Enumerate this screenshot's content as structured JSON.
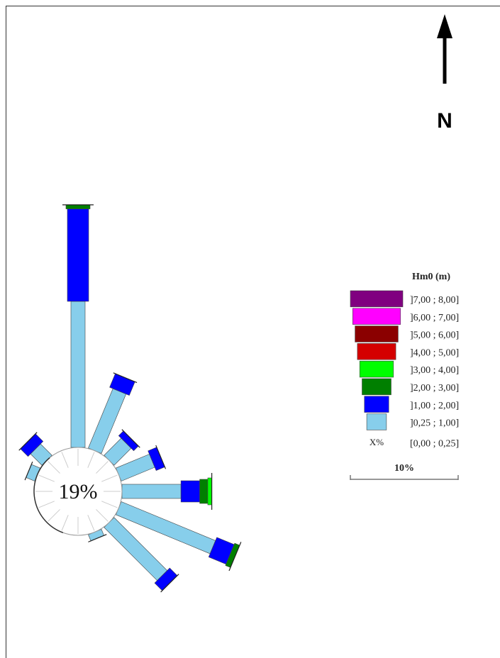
{
  "chart_data": {
    "type": "wave-rose",
    "calm_percent_label": "19%",
    "calm_value": 19,
    "north_label": "N",
    "legend": {
      "title": "Hm0 (m)",
      "classes": [
        {
          "label": "]7,00 ; 8,00]",
          "color": "#800080"
        },
        {
          "label": "]6,00 ; 7,00]",
          "color": "#ff00ff"
        },
        {
          "label": "]5,00 ; 6,00]",
          "color": "#8b0000"
        },
        {
          "label": "]4,00 ; 5,00]",
          "color": "#d40000"
        },
        {
          "label": "]3,00 ; 4,00]",
          "color": "#00ff00"
        },
        {
          "label": "]2,00 ; 3,00]",
          "color": "#007f00"
        },
        {
          "label": "]1,00 ; 2,00]",
          "color": "#0000ff"
        },
        {
          "label": "]0,25 ; 1,00]",
          "color": "#87ceeb"
        },
        {
          "label": "[0,00 ; 0,25]",
          "color": "none"
        }
      ],
      "calm_symbol": "X%",
      "scale_label": "10%",
      "scale_value": 10
    },
    "directions_deg": [
      0,
      22.5,
      45,
      67.5,
      90,
      112.5,
      135,
      157.5,
      180,
      202.5,
      225,
      247.5,
      270,
      292.5,
      315,
      337.5
    ],
    "sectors": [
      {
        "direction": 0,
        "bins": [
          10.9,
          6.9,
          0.3
        ]
      },
      {
        "direction": 22.5,
        "bins": [
          4.8,
          1.1
        ]
      },
      {
        "direction": 45,
        "bins": [
          1.8,
          0.5
        ]
      },
      {
        "direction": 67.5,
        "bins": [
          2.7,
          0.7
        ]
      },
      {
        "direction": 90,
        "bins": [
          4.4,
          1.4,
          0.6,
          0.3
        ]
      },
      {
        "direction": 112.5,
        "bins": [
          7.6,
          1.4,
          0.4
        ]
      },
      {
        "direction": 135,
        "bins": [
          5.6,
          0.8
        ]
      },
      {
        "direction": 157.5,
        "bins": [
          0.5
        ]
      },
      {
        "direction": 315,
        "bins": [
          1.2,
          0.8
        ]
      },
      {
        "direction": 292.5,
        "bins": [
          0.7
        ]
      }
    ]
  }
}
